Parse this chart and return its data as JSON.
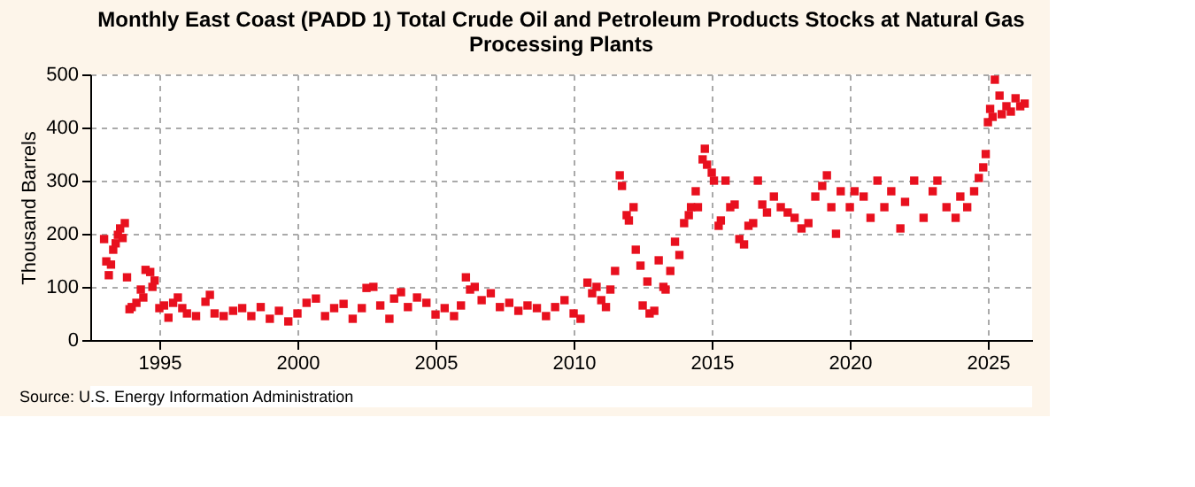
{
  "chart_data": {
    "type": "scatter",
    "title": "Monthly East Coast (PADD 1) Total Crude Oil and Petroleum Products Stocks at Natural Gas Processing Plants",
    "ylabel": "Thousand Barrels",
    "annotations": [
      "Source: U.S. Energy Information Administration"
    ],
    "x": [
      1993.0,
      1993.08,
      1993.17,
      1993.25,
      1993.33,
      1993.42,
      1993.5,
      1993.58,
      1993.67,
      1993.75,
      1993.83,
      1993.92,
      1994.0,
      1994.17,
      1994.33,
      1994.42,
      1994.5,
      1994.67,
      1994.75,
      1994.83,
      1995.0,
      1995.17,
      1995.33,
      1995.5,
      1995.67,
      1995.83,
      1996.0,
      1996.33,
      1996.67,
      1996.83,
      1997.0,
      1997.33,
      1997.67,
      1998.0,
      1998.33,
      1998.67,
      1999.0,
      1999.33,
      1999.67,
      2000.0,
      2000.33,
      2000.67,
      2001.0,
      2001.33,
      2001.67,
      2002.0,
      2002.33,
      2002.5,
      2002.75,
      2003.0,
      2003.33,
      2003.5,
      2003.75,
      2004.0,
      2004.33,
      2004.67,
      2005.0,
      2005.33,
      2005.67,
      2005.92,
      2006.1,
      2006.25,
      2006.42,
      2006.67,
      2007.0,
      2007.33,
      2007.67,
      2008.0,
      2008.33,
      2008.67,
      2009.0,
      2009.33,
      2009.67,
      2010.0,
      2010.25,
      2010.5,
      2010.67,
      2010.83,
      2011.0,
      2011.17,
      2011.33,
      2011.5,
      2011.67,
      2011.75,
      2011.92,
      2012.0,
      2012.17,
      2012.25,
      2012.42,
      2012.5,
      2012.67,
      2012.75,
      2012.92,
      2013.08,
      2013.25,
      2013.33,
      2013.5,
      2013.67,
      2013.83,
      2014.0,
      2014.17,
      2014.25,
      2014.42,
      2014.5,
      2014.67,
      2014.75,
      2014.83,
      2015.0,
      2015.08,
      2015.25,
      2015.33,
      2015.5,
      2015.67,
      2015.83,
      2016.0,
      2016.17,
      2016.33,
      2016.5,
      2016.67,
      2016.83,
      2017.0,
      2017.25,
      2017.5,
      2017.75,
      2018.0,
      2018.25,
      2018.5,
      2018.75,
      2019.0,
      2019.17,
      2019.33,
      2019.5,
      2019.67,
      2020.0,
      2020.17,
      2020.5,
      2020.75,
      2021.0,
      2021.25,
      2021.5,
      2021.83,
      2022.0,
      2022.33,
      2022.67,
      2023.0,
      2023.17,
      2023.5,
      2023.83,
      2024.0,
      2024.25,
      2024.5,
      2024.67,
      2024.83,
      2024.92,
      2025.0,
      2025.08,
      2025.17,
      2025.25,
      2025.42,
      2025.5,
      2025.67,
      2025.83,
      2026.0,
      2026.17,
      2026.33
    ],
    "series": [
      {
        "color": "#e8101e",
        "values": [
          190,
          148,
          122,
          142,
          170,
          182,
          198,
          210,
          192,
          220,
          118,
          58,
          62,
          70,
          95,
          80,
          132,
          128,
          100,
          112,
          60,
          65,
          42,
          70,
          80,
          60,
          50,
          45,
          72,
          85,
          50,
          45,
          55,
          60,
          45,
          62,
          40,
          55,
          35,
          50,
          70,
          78,
          45,
          60,
          68,
          40,
          60,
          98,
          100,
          65,
          40,
          78,
          90,
          62,
          80,
          70,
          48,
          60,
          45,
          65,
          118,
          95,
          100,
          75,
          88,
          62,
          70,
          55,
          65,
          60,
          45,
          62,
          75,
          50,
          40,
          108,
          88,
          100,
          75,
          62,
          95,
          130,
          310,
          290,
          235,
          225,
          250,
          170,
          140,
          65,
          110,
          50,
          55,
          150,
          100,
          95,
          130,
          185,
          160,
          220,
          235,
          250,
          280,
          250,
          340,
          360,
          330,
          315,
          300,
          215,
          225,
          300,
          250,
          255,
          190,
          180,
          215,
          220,
          300,
          255,
          240,
          270,
          250,
          240,
          230,
          210,
          220,
          270,
          290,
          310,
          250,
          200,
          280,
          250,
          280,
          270,
          230,
          300,
          250,
          280,
          210,
          260,
          300,
          230,
          280,
          300,
          250,
          230,
          270,
          250,
          280,
          305,
          325,
          350,
          410,
          435,
          420,
          490,
          460,
          425,
          440,
          430,
          455,
          440,
          445
        ]
      }
    ],
    "xlim": [
      1992.5,
      2026.6
    ],
    "xticks": [
      1995,
      2000,
      2005,
      2010,
      2015,
      2020,
      2025
    ],
    "ylim": [
      0,
      500
    ],
    "yticks": [
      0,
      100,
      200,
      300,
      400,
      500
    ],
    "grid": true,
    "marker": "square"
  }
}
